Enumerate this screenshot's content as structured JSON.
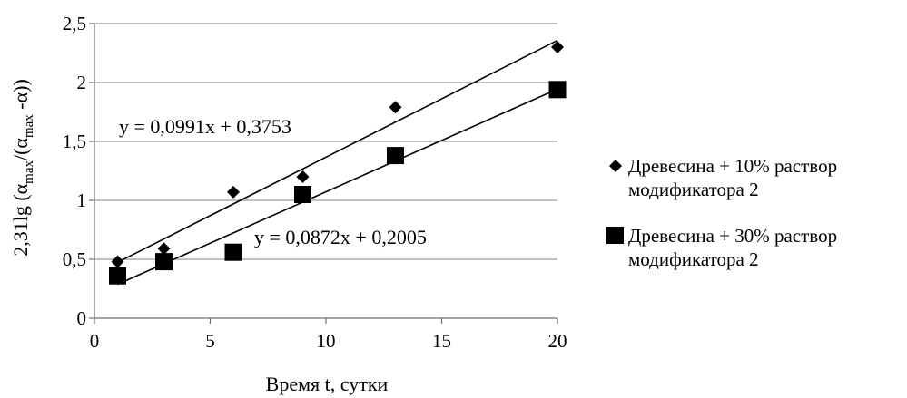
{
  "chart_data": {
    "type": "scatter",
    "xlabel": "Время t, сутки",
    "ylabel": {
      "prefix": "2,31lg (α",
      "sub1": "max",
      "mid": "/(α",
      "sub2": "max",
      "suffix": " -α))"
    },
    "xlim": [
      0,
      20
    ],
    "ylim": [
      0,
      2.5
    ],
    "x_ticks": [
      0,
      5,
      10,
      15,
      20
    ],
    "x_tick_labels": [
      "0",
      "5",
      "10",
      "15",
      "20"
    ],
    "y_ticks": [
      0,
      0.5,
      1,
      1.5,
      2,
      2.5
    ],
    "y_tick_labels": [
      "0",
      "0,5",
      "1",
      "1,5",
      "2",
      "2,5"
    ],
    "grid": "horizontal",
    "legend_position": "right",
    "series": [
      {
        "name": "Древесина + 10% раствор модификатора 2",
        "legend_lines": [
          "Древесина + 10% раствор",
          "модификатора 2"
        ],
        "marker": "diamond",
        "x": [
          1,
          3,
          6,
          9,
          13,
          20
        ],
        "y": [
          0.48,
          0.59,
          1.07,
          1.2,
          1.79,
          2.3
        ],
        "trendline": {
          "slope": 0.0991,
          "intercept": 0.3753,
          "equation": "y = 0,0991x + 0,3753"
        }
      },
      {
        "name": "Древесина + 30% раствор модификатора 2",
        "legend_lines": [
          "Древесина + 30% раствор",
          "модификатора 2"
        ],
        "marker": "square",
        "x": [
          1,
          3,
          6,
          9,
          13,
          20
        ],
        "y": [
          0.36,
          0.48,
          0.56,
          1.05,
          1.38,
          1.94
        ],
        "trendline": {
          "slope": 0.0872,
          "intercept": 0.2005,
          "equation": "y = 0,0872x + 0,2005"
        }
      }
    ],
    "colors": {
      "markers": "#000000",
      "grid": "#9a9a9a",
      "axis": "#6e6e6e"
    }
  }
}
